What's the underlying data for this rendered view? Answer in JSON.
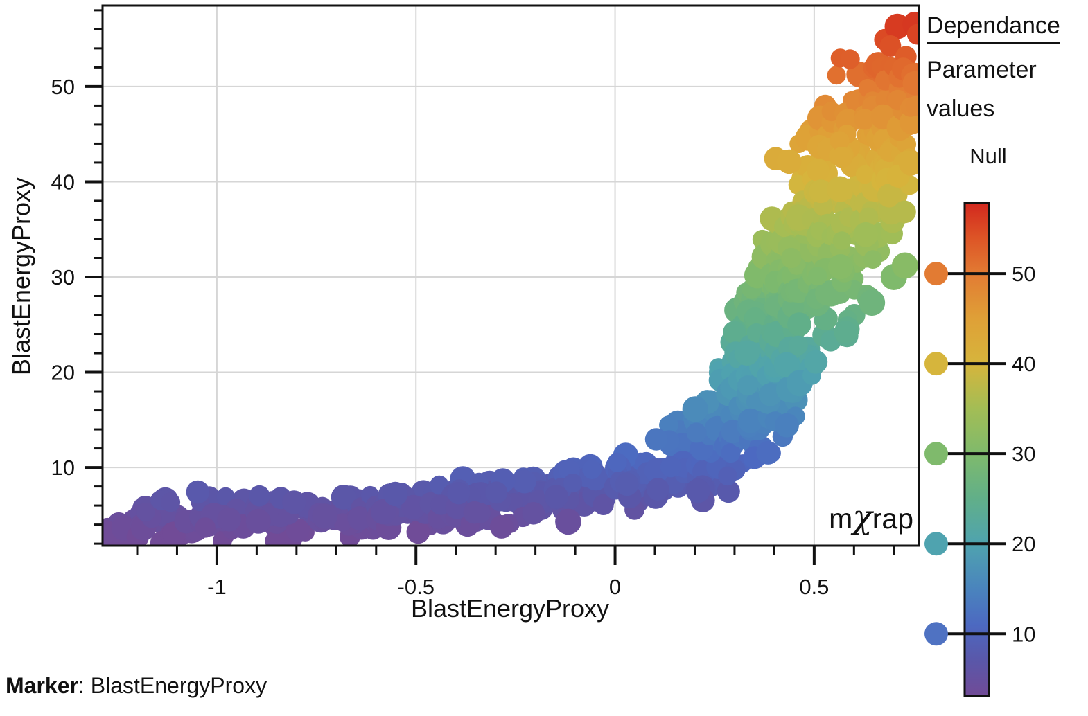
{
  "caption": {
    "label": "Marker",
    "rest": ": BlastEnergyProxy"
  },
  "watermark": {
    "pre": "m",
    "chi": "χ",
    "post": "rap",
    "color": "#2b2d6e"
  },
  "legend": {
    "title": "Dependance",
    "subtitle_lines": [
      "Parameter",
      "values"
    ],
    "null_label": "Null",
    "dot_values": [
      50,
      40,
      30,
      20,
      10
    ],
    "dot_colors": [
      "#e27b33",
      "#d6b53c",
      "#7fba6c",
      "#4fa3af",
      "#4f72c2"
    ]
  },
  "colorbar": {
    "range": [
      3.1,
      57.85
    ],
    "ticks": [
      10,
      20,
      30,
      40,
      50
    ],
    "border_color": "#111111"
  },
  "chart_data": {
    "type": "scatter",
    "title": "",
    "xlabel": "BlastEnergyProxy",
    "ylabel": "BlastEnergyProxy",
    "xlim": [
      -1.287,
      0.763
    ],
    "ylim": [
      1.79,
      58.5
    ],
    "xticks": [
      -1,
      -0.5,
      0,
      0.5
    ],
    "xtick_labels": [
      "-1",
      "-0.5",
      "0",
      "0.5"
    ],
    "xminor_step": 0.1,
    "yticks": [
      10,
      20,
      30,
      40,
      50
    ],
    "yminor_step": 2,
    "grid": true,
    "grid_color": "#d6d6d6",
    "axis_color": "#111111",
    "color_by": "y",
    "color_range": [
      3.1,
      57.85
    ],
    "colormap": [
      [
        3,
        "#714b97"
      ],
      [
        7,
        "#5a57a9"
      ],
      [
        11,
        "#4c69c1"
      ],
      [
        15,
        "#4a84bd"
      ],
      [
        20,
        "#4fa3af"
      ],
      [
        25,
        "#61af89"
      ],
      [
        30,
        "#7fba6c"
      ],
      [
        35,
        "#a3bd55"
      ],
      [
        40,
        "#d6b53c"
      ],
      [
        45,
        "#dfa037"
      ],
      [
        50,
        "#e27b33"
      ],
      [
        54,
        "#dd5426"
      ],
      [
        58,
        "#d2281e"
      ]
    ],
    "marker_radius_px": [
      13,
      19
    ],
    "n_points": 920,
    "seed": 20240613,
    "band_envelope": [
      [
        -1.287,
        1.8,
        4.8
      ],
      [
        -1.2,
        1.8,
        6.9
      ],
      [
        -1.05,
        1.9,
        7.7
      ],
      [
        -0.9,
        2.0,
        8.0
      ],
      [
        -0.75,
        2.2,
        8.2
      ],
      [
        -0.6,
        2.5,
        8.4
      ],
      [
        -0.45,
        2.9,
        8.8
      ],
      [
        -0.3,
        3.3,
        9.3
      ],
      [
        -0.15,
        3.8,
        10.2
      ],
      [
        0.0,
        4.4,
        11.8
      ],
      [
        0.1,
        5.1,
        13.5
      ],
      [
        0.2,
        6.0,
        17.0
      ],
      [
        0.28,
        6.7,
        23.0
      ],
      [
        0.33,
        7.2,
        33.0
      ],
      [
        0.38,
        8.0,
        41.0
      ],
      [
        0.43,
        11.0,
        46.0
      ],
      [
        0.5,
        17.5,
        51.0
      ],
      [
        0.56,
        21.5,
        53.5
      ],
      [
        0.62,
        25.0,
        55.5
      ],
      [
        0.67,
        28.5,
        57.0
      ],
      [
        0.71,
        31.0,
        57.8
      ],
      [
        0.74,
        36.0,
        58.4
      ],
      [
        0.763,
        44.0,
        58.4
      ]
    ],
    "extra_points": [
      [
        0.7,
        30.0
      ],
      [
        0.728,
        31.2
      ],
      [
        0.645,
        27.3
      ]
    ]
  }
}
